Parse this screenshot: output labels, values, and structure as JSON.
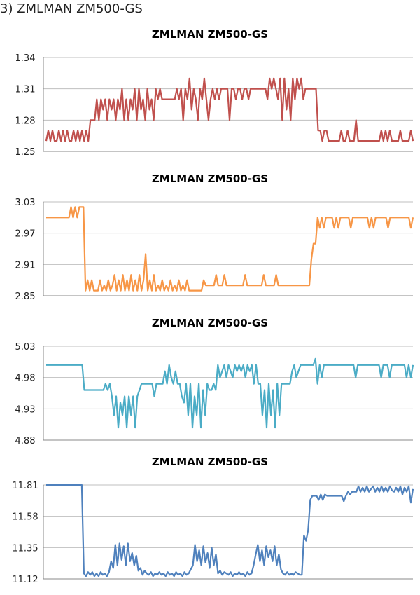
{
  "heading": "3) ZMLMAN ZM500-GS",
  "chart_data": [
    {
      "type": "line",
      "title": "ZMLMAN ZM500-GS",
      "ylim": [
        1.25,
        1.34
      ],
      "yticks": [
        "1.34",
        "1.31",
        "1.28",
        "1.25"
      ],
      "grid": true,
      "legend": "none",
      "series": [
        {
          "color": "#C0504D",
          "values": [
            1.26,
            1.27,
            1.26,
            1.27,
            1.26,
            1.26,
            1.27,
            1.26,
            1.27,
            1.26,
            1.27,
            1.26,
            1.26,
            1.27,
            1.26,
            1.27,
            1.26,
            1.27,
            1.26,
            1.27,
            1.26,
            1.28,
            1.28,
            1.28,
            1.3,
            1.28,
            1.3,
            1.29,
            1.3,
            1.28,
            1.3,
            1.29,
            1.3,
            1.28,
            1.3,
            1.29,
            1.31,
            1.28,
            1.3,
            1.28,
            1.3,
            1.29,
            1.31,
            1.28,
            1.31,
            1.29,
            1.3,
            1.28,
            1.31,
            1.29,
            1.3,
            1.28,
            1.31,
            1.3,
            1.31,
            1.3,
            1.3,
            1.3,
            1.3,
            1.3,
            1.3,
            1.3,
            1.31,
            1.3,
            1.31,
            1.28,
            1.31,
            1.3,
            1.32,
            1.29,
            1.31,
            1.3,
            1.28,
            1.31,
            1.3,
            1.32,
            1.3,
            1.28,
            1.3,
            1.31,
            1.3,
            1.31,
            1.3,
            1.31,
            1.31,
            1.31,
            1.31,
            1.28,
            1.31,
            1.31,
            1.3,
            1.31,
            1.31,
            1.3,
            1.31,
            1.31,
            1.3,
            1.31,
            1.31,
            1.31,
            1.31,
            1.31,
            1.31,
            1.31,
            1.31,
            1.3,
            1.32,
            1.31,
            1.32,
            1.31,
            1.3,
            1.32,
            1.28,
            1.32,
            1.29,
            1.31,
            1.28,
            1.32,
            1.3,
            1.32,
            1.31,
            1.32,
            1.3,
            1.31,
            1.31,
            1.31,
            1.31,
            1.31,
            1.31,
            1.27,
            1.27,
            1.26,
            1.27,
            1.27,
            1.26,
            1.26,
            1.26,
            1.26,
            1.26,
            1.26,
            1.27,
            1.26,
            1.26,
            1.27,
            1.26,
            1.26,
            1.26,
            1.28,
            1.26,
            1.26,
            1.26,
            1.26,
            1.26,
            1.26,
            1.26,
            1.26,
            1.26,
            1.26,
            1.26,
            1.27,
            1.26,
            1.27,
            1.26,
            1.27,
            1.26,
            1.26,
            1.26,
            1.26,
            1.27,
            1.26,
            1.26,
            1.26,
            1.26,
            1.27,
            1.26
          ]
        }
      ]
    },
    {
      "type": "line",
      "title": "ZMLMAN ZM500-GS",
      "ylim": [
        2.85,
        3.03
      ],
      "yticks": [
        "3.03",
        "2.97",
        "2.91",
        "2.85"
      ],
      "grid": true,
      "legend": "none",
      "series": [
        {
          "color": "#F79646",
          "values": [
            3.0,
            3.0,
            3.0,
            3.0,
            3.0,
            3.0,
            3.0,
            3.0,
            3.0,
            3.0,
            3.0,
            3.0,
            3.02,
            3.0,
            3.02,
            3.0,
            3.02,
            3.02,
            3.02,
            2.86,
            2.88,
            2.86,
            2.88,
            2.86,
            2.86,
            2.86,
            2.88,
            2.86,
            2.87,
            2.86,
            2.88,
            2.86,
            2.87,
            2.89,
            2.86,
            2.88,
            2.86,
            2.89,
            2.86,
            2.88,
            2.86,
            2.89,
            2.86,
            2.88,
            2.86,
            2.89,
            2.86,
            2.88,
            2.93,
            2.86,
            2.88,
            2.86,
            2.89,
            2.86,
            2.87,
            2.86,
            2.88,
            2.86,
            2.87,
            2.86,
            2.88,
            2.86,
            2.87,
            2.86,
            2.88,
            2.86,
            2.87,
            2.86,
            2.88,
            2.86,
            2.86,
            2.86,
            2.86,
            2.86,
            2.86,
            2.86,
            2.88,
            2.87,
            2.87,
            2.87,
            2.87,
            2.87,
            2.89,
            2.87,
            2.87,
            2.87,
            2.89,
            2.87,
            2.87,
            2.87,
            2.87,
            2.87,
            2.87,
            2.87,
            2.87,
            2.87,
            2.89,
            2.87,
            2.87,
            2.87,
            2.87,
            2.87,
            2.87,
            2.87,
            2.87,
            2.89,
            2.87,
            2.87,
            2.87,
            2.87,
            2.87,
            2.89,
            2.87,
            2.87,
            2.87,
            2.87,
            2.87,
            2.87,
            2.87,
            2.87,
            2.87,
            2.87,
            2.87,
            2.87,
            2.87,
            2.87,
            2.87,
            2.87,
            2.92,
            2.95,
            2.95,
            3.0,
            2.98,
            3.0,
            2.98,
            3.0,
            3.0,
            3.0,
            3.0,
            2.98,
            3.0,
            2.98,
            3.0,
            3.0,
            3.0,
            3.0,
            3.0,
            2.98,
            3.0,
            3.0,
            3.0,
            3.0,
            3.0,
            3.0,
            3.0,
            3.0,
            2.98,
            3.0,
            2.98,
            3.0,
            3.0,
            3.0,
            3.0,
            3.0,
            3.0,
            2.98,
            3.0,
            3.0,
            3.0,
            3.0,
            3.0,
            3.0,
            3.0,
            3.0,
            3.0,
            3.0,
            2.98,
            3.0
          ]
        }
      ]
    },
    {
      "type": "line",
      "title": "ZMLMAN ZM500-GS",
      "ylim": [
        4.88,
        5.03
      ],
      "yticks": [
        "5.03",
        "4.98",
        "4.93",
        "4.88"
      ],
      "grid": true,
      "legend": "none",
      "series": [
        {
          "color": "#4BACC6",
          "values": [
            5.0,
            5.0,
            5.0,
            5.0,
            5.0,
            5.0,
            5.0,
            5.0,
            5.0,
            5.0,
            5.0,
            5.0,
            5.0,
            5.0,
            5.0,
            5.0,
            5.0,
            5.0,
            4.96,
            4.96,
            4.96,
            4.96,
            4.96,
            4.96,
            4.96,
            4.96,
            4.96,
            4.96,
            4.97,
            4.96,
            4.97,
            4.95,
            4.92,
            4.95,
            4.9,
            4.94,
            4.92,
            4.95,
            4.9,
            4.95,
            4.92,
            4.95,
            4.9,
            4.95,
            4.96,
            4.97,
            4.97,
            4.97,
            4.97,
            4.97,
            4.97,
            4.95,
            4.97,
            4.97,
            4.97,
            4.97,
            4.99,
            4.97,
            5.0,
            4.98,
            4.97,
            4.99,
            4.97,
            4.97,
            4.95,
            4.94,
            4.97,
            4.92,
            4.97,
            4.9,
            4.95,
            4.92,
            4.97,
            4.9,
            4.96,
            4.92,
            4.97,
            4.96,
            4.96,
            4.97,
            4.96,
            5.0,
            4.98,
            4.99,
            5.0,
            4.98,
            5.0,
            4.99,
            4.98,
            5.0,
            4.99,
            5.0,
            4.99,
            5.0,
            4.98,
            5.0,
            4.99,
            5.0,
            4.97,
            5.0,
            4.97,
            4.97,
            4.92,
            4.96,
            4.9,
            4.97,
            4.92,
            4.96,
            4.9,
            4.97,
            4.92,
            4.97,
            4.97,
            4.97,
            4.97,
            4.97,
            4.99,
            5.0,
            4.98,
            4.99,
            5.0,
            5.0,
            5.0,
            5.0,
            5.0,
            5.0,
            5.0,
            5.01,
            4.97,
            5.0,
            4.98,
            5.0,
            5.0,
            5.0,
            5.0,
            5.0,
            5.0,
            5.0,
            5.0,
            5.0,
            5.0,
            5.0,
            5.0,
            5.0,
            5.0,
            5.0,
            4.98,
            5.0,
            5.0,
            5.0,
            5.0,
            5.0,
            5.0,
            5.0,
            5.0,
            5.0,
            5.0,
            5.0,
            4.98,
            5.0,
            5.0,
            5.0,
            4.98,
            5.0,
            5.0,
            5.0,
            5.0,
            5.0,
            5.0,
            5.0,
            4.98,
            5.0,
            4.98,
            5.0
          ]
        }
      ]
    },
    {
      "type": "line",
      "title": "ZMLMAN ZM500-GS",
      "ylim": [
        11.12,
        11.81
      ],
      "yticks": [
        "11.81",
        "11.58",
        "11.35",
        "11.12"
      ],
      "grid": true,
      "legend": "none",
      "series": [
        {
          "color": "#4F81BD",
          "values": [
            11.81,
            11.81,
            11.81,
            11.81,
            11.81,
            11.81,
            11.81,
            11.81,
            11.81,
            11.81,
            11.81,
            11.81,
            11.81,
            11.81,
            11.81,
            11.81,
            11.81,
            11.81,
            11.16,
            11.14,
            11.17,
            11.15,
            11.17,
            11.14,
            11.16,
            11.14,
            11.17,
            11.15,
            11.16,
            11.14,
            11.17,
            11.25,
            11.2,
            11.37,
            11.22,
            11.38,
            11.26,
            11.36,
            11.22,
            11.38,
            11.25,
            11.31,
            11.22,
            11.29,
            11.18,
            11.2,
            11.15,
            11.18,
            11.16,
            11.15,
            11.17,
            11.14,
            11.16,
            11.15,
            11.17,
            11.15,
            11.16,
            11.14,
            11.17,
            11.15,
            11.16,
            11.14,
            11.17,
            11.15,
            11.16,
            11.14,
            11.17,
            11.15,
            11.16,
            11.19,
            11.22,
            11.37,
            11.25,
            11.33,
            11.22,
            11.36,
            11.24,
            11.31,
            11.2,
            11.35,
            11.22,
            11.3,
            11.16,
            11.18,
            11.15,
            11.17,
            11.16,
            11.15,
            11.17,
            11.14,
            11.16,
            11.15,
            11.17,
            11.15,
            11.16,
            11.14,
            11.17,
            11.15,
            11.16,
            11.22,
            11.3,
            11.37,
            11.25,
            11.33,
            11.22,
            11.36,
            11.28,
            11.33,
            11.25,
            11.36,
            11.22,
            11.3,
            11.19,
            11.16,
            11.15,
            11.17,
            11.15,
            11.16,
            11.15,
            11.17,
            11.16,
            11.15,
            11.15,
            11.44,
            11.4,
            11.48,
            11.7,
            11.73,
            11.73,
            11.73,
            11.7,
            11.74,
            11.7,
            11.74,
            11.73,
            11.73,
            11.73,
            11.73,
            11.73,
            11.73,
            11.73,
            11.73,
            11.69,
            11.73,
            11.76,
            11.74,
            11.76,
            11.76,
            11.76,
            11.8,
            11.76,
            11.79,
            11.76,
            11.8,
            11.76,
            11.78,
            11.8,
            11.76,
            11.79,
            11.76,
            11.8,
            11.76,
            11.79,
            11.76,
            11.8,
            11.77,
            11.76,
            11.79,
            11.76,
            11.8,
            11.74,
            11.79,
            11.76,
            11.8,
            11.68,
            11.78
          ]
        }
      ]
    }
  ]
}
